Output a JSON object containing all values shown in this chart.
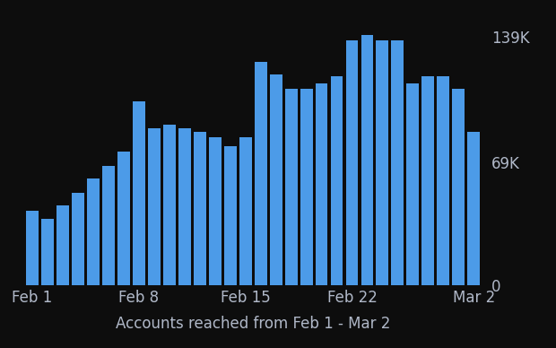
{
  "values": [
    42000,
    37000,
    45000,
    52000,
    60000,
    67000,
    75000,
    103000,
    88000,
    90000,
    88000,
    86000,
    83000,
    78000,
    83000,
    125000,
    118000,
    110000,
    110000,
    113000,
    117000,
    137000,
    140000,
    137000,
    137000,
    113000,
    117000,
    117000,
    110000,
    86000
  ],
  "bar_color": "#4C9BE8",
  "background_color": "#0d0d0d",
  "text_color": "#b0b8c8",
  "xlabel": "Accounts reached from Feb 1 - Mar 2",
  "ytick_labels": [
    "0",
    "69K",
    "139K"
  ],
  "ytick_values": [
    0,
    69000,
    139000
  ],
  "xtick_labels": [
    "Feb 1",
    "Feb 8",
    "Feb 15",
    "Feb 22",
    "Mar 2"
  ],
  "xtick_positions": [
    0,
    7,
    14,
    21,
    29
  ],
  "ylim": [
    0,
    150000
  ],
  "bar_width": 0.82,
  "xlabel_fontsize": 12,
  "ytick_fontsize": 12,
  "xtick_fontsize": 12
}
